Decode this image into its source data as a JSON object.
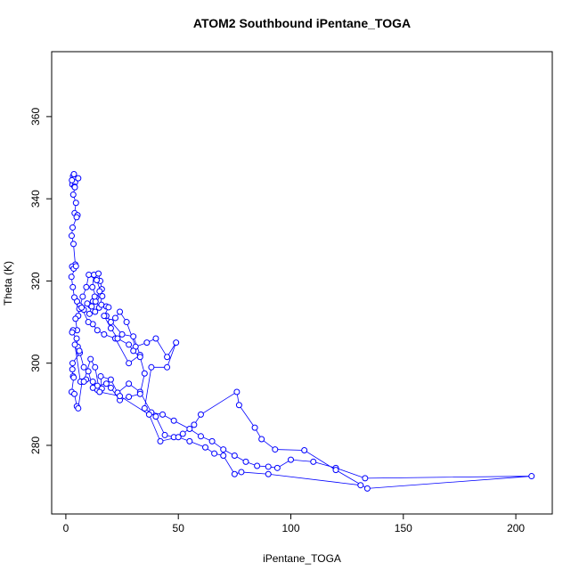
{
  "chart_data": {
    "type": "scatter-line",
    "title": "ATOM2 Southbound iPentane_TOGA",
    "x_label": "iPentane_TOGA",
    "y_label": "Theta (K)",
    "xlim": [
      -6.3,
      216.2
    ],
    "ylim": [
      263.3,
      375.8
    ],
    "xticks": [
      0,
      50,
      100,
      150,
      200
    ],
    "yticks": [
      280,
      300,
      320,
      340,
      360
    ],
    "x": [
      3.2,
      3.5,
      2.9,
      4.1,
      3.6,
      2.7,
      3.8,
      5.5,
      4.0,
      3.3,
      4.5,
      3.9,
      5.2,
      4.8,
      3.0,
      2.6,
      3.4,
      4.2,
      2.8,
      3.5,
      4.5,
      2.5,
      3.1,
      3.8,
      5.0,
      6.2,
      8.0,
      10.5,
      12,
      13.5,
      11.8,
      12.5,
      14.5,
      15.3,
      16,
      15,
      13.2,
      11.0,
      12.8,
      14.8,
      16.2,
      13.7,
      10.2,
      9.1,
      7.5,
      6.0,
      5.5,
      4.3,
      5.0,
      3.2,
      2.8,
      4.8,
      5.3,
      6.2,
      3.0,
      2.9,
      3.2,
      3.5,
      2.6,
      3.8,
      4.9,
      5.5,
      7.2,
      9,
      12,
      14,
      16,
      15.5,
      20,
      23,
      28,
      33,
      38,
      43,
      48,
      55,
      60,
      65,
      70,
      75,
      80,
      85,
      90,
      94,
      100,
      110,
      120,
      133,
      207,
      134,
      120,
      106,
      93,
      87,
      84,
      77,
      76,
      60,
      57,
      52,
      48,
      44,
      40,
      35,
      38,
      45,
      49,
      45,
      40,
      36,
      31,
      27,
      24,
      22,
      20,
      18,
      25,
      30,
      33,
      28,
      22,
      17,
      14,
      12,
      10,
      7,
      9.5,
      11.5,
      13,
      15.8,
      18,
      19,
      17,
      20,
      23,
      28,
      30,
      33,
      35,
      33,
      28,
      24,
      20,
      18,
      14,
      12,
      10,
      8,
      6,
      4,
      6.5,
      8,
      11,
      13,
      15,
      24,
      37,
      42,
      50,
      55,
      62,
      66,
      70,
      75,
      78,
      90,
      131
    ],
    "series": [
      {
        "color": "#0000ff",
        "values": [
          345.5,
          344.8,
          343.5,
          344,
          346,
          344.5,
          343,
          345,
          342.8,
          341,
          339,
          336.5,
          336,
          335.5,
          333,
          331,
          329,
          324,
          323.5,
          323,
          323.6,
          321,
          318.5,
          316,
          315,
          314,
          313,
          312,
          315,
          316,
          318.5,
          321.5,
          321.8,
          320,
          318,
          317.5,
          315,
          314,
          316.2,
          313.5,
          316.3,
          320.2,
          321.5,
          318.5,
          316.2,
          313.2,
          311.5,
          310.8,
          308,
          308,
          307.5,
          306,
          304,
          302.5,
          300,
          298.5,
          296.8,
          296.5,
          293,
          292.5,
          289.5,
          289,
          295.5,
          296,
          295.5,
          293.5,
          293.8,
          296.8,
          296,
          292.8,
          295,
          293,
          288,
          287.5,
          286,
          284,
          282.2,
          281,
          279,
          277.5,
          276,
          275,
          274.8,
          274.5,
          276.5,
          276,
          274.5,
          272,
          272.5,
          269.5,
          274,
          278.8,
          279,
          281.5,
          284.3,
          289.8,
          293,
          287.5,
          285,
          282.8,
          282,
          282.5,
          287,
          289,
          299,
          299,
          305,
          301.5,
          306,
          305,
          304,
          310,
          312.5,
          311,
          310,
          311.5,
          307,
          306.5,
          302,
          300,
          306,
          307,
          308,
          309.5,
          310,
          313.5,
          314.5,
          313.8,
          312.5,
          314.2,
          313.8,
          313.6,
          311.5,
          308.5,
          306,
          304.5,
          303,
          301.5,
          297.5,
          292.5,
          291.8,
          291,
          294,
          295,
          294.5,
          294,
          298,
          299,
          303,
          304.5,
          295.5,
          295.5,
          301,
          299,
          293,
          292,
          287.5,
          281,
          282,
          281,
          279.5,
          278,
          277.5,
          273,
          273.5,
          273,
          270.3
        ]
      }
    ]
  }
}
